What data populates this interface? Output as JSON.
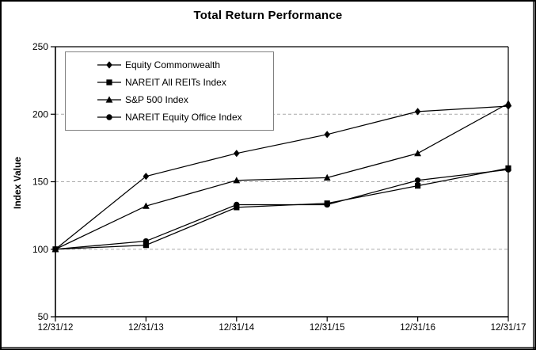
{
  "title": "Total Return Performance",
  "chart_data": {
    "type": "line",
    "title": "Total Return Performance",
    "xlabel": "",
    "ylabel": "Index Value",
    "categories": [
      "12/31/12",
      "12/31/13",
      "12/31/14",
      "12/31/15",
      "12/31/16",
      "12/31/17"
    ],
    "series": [
      {
        "name": "Equity Commonwealth",
        "marker": "diamond",
        "values": [
          100,
          154,
          171,
          185,
          202,
          206
        ]
      },
      {
        "name": "NAREIT All REITs Index",
        "marker": "square",
        "values": [
          100,
          103,
          131,
          134,
          147,
          160
        ]
      },
      {
        "name": "S&P 500 Index",
        "marker": "triangle",
        "values": [
          100,
          132,
          151,
          153,
          171,
          208
        ]
      },
      {
        "name": "NAREIT Equity Office Index",
        "marker": "circle",
        "values": [
          100,
          106,
          133,
          133,
          151,
          159
        ]
      }
    ],
    "ylim": [
      50,
      250
    ],
    "yticks": [
      50,
      100,
      150,
      200,
      250
    ],
    "dashed_gridlines_at": [
      100,
      150,
      200
    ],
    "grid": "horizontal-dashed",
    "legend_position": "top-left-inside",
    "colors": {
      "series": "#000000",
      "gridline": "#aaaaaa",
      "axis": "#000000",
      "legend_border": "#808080",
      "background": "#ffffff"
    }
  }
}
